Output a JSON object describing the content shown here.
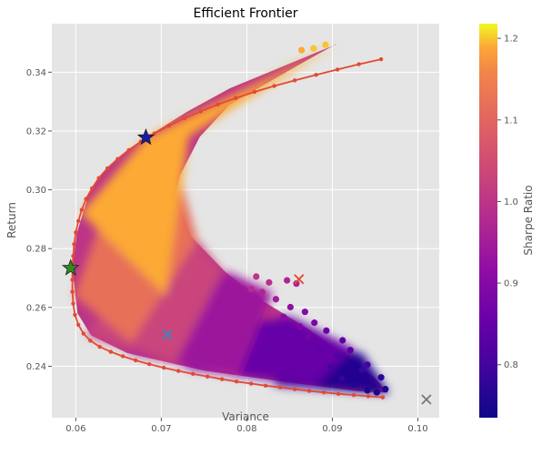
{
  "chart_data": {
    "type": "scatter",
    "title": "Efficient Frontier",
    "xlabel": "Variance",
    "ylabel": "Return",
    "xlim": [
      0.0572,
      0.1025
    ],
    "ylim": [
      0.2225,
      0.3565
    ],
    "x_ticks": [
      0.06,
      0.07,
      0.08,
      0.09,
      0.1
    ],
    "x_tick_labels": [
      "0.06",
      "0.07",
      "0.08",
      "0.09",
      "0.10"
    ],
    "y_ticks": [
      0.24,
      0.26,
      0.28,
      0.3,
      0.32,
      0.34
    ],
    "y_tick_labels": [
      "0.24",
      "0.26",
      "0.28",
      "0.30",
      "0.32",
      "0.34"
    ],
    "grid": true,
    "colormap": "plasma",
    "colorbar": {
      "label": "Sharpe Ratio",
      "range": [
        0.735,
        1.218
      ],
      "ticks": [
        0.8,
        0.9,
        1.0,
        1.1,
        1.2
      ],
      "tick_labels": [
        "0.8",
        "0.9",
        "1.0",
        "1.1",
        "1.2"
      ]
    },
    "portfolio_cloud": {
      "color_encoding": "sharpe_ratio",
      "upper_edge": [
        {
          "x": 0.0596,
          "y": 0.2734
        },
        {
          "x": 0.0601,
          "y": 0.285
        },
        {
          "x": 0.0616,
          "y": 0.2995
        },
        {
          "x": 0.064,
          "y": 0.3085
        },
        {
          "x": 0.0682,
          "y": 0.3178
        },
        {
          "x": 0.073,
          "y": 0.3265
        },
        {
          "x": 0.078,
          "y": 0.3345
        },
        {
          "x": 0.083,
          "y": 0.3405
        },
        {
          "x": 0.088,
          "y": 0.3465
        },
        {
          "x": 0.0905,
          "y": 0.3495
        }
      ],
      "lower_edge": [
        {
          "x": 0.0904,
          "y": 0.3495
        },
        {
          "x": 0.087,
          "y": 0.344
        },
        {
          "x": 0.0828,
          "y": 0.337
        },
        {
          "x": 0.078,
          "y": 0.329
        },
        {
          "x": 0.0745,
          "y": 0.318
        },
        {
          "x": 0.0722,
          "y": 0.305
        },
        {
          "x": 0.0716,
          "y": 0.298
        },
        {
          "x": 0.0735,
          "y": 0.284
        },
        {
          "x": 0.0775,
          "y": 0.272
        },
        {
          "x": 0.082,
          "y": 0.262
        },
        {
          "x": 0.087,
          "y": 0.253
        },
        {
          "x": 0.0915,
          "y": 0.244
        },
        {
          "x": 0.095,
          "y": 0.236
        },
        {
          "x": 0.0965,
          "y": 0.231
        },
        {
          "x": 0.093,
          "y": 0.2315
        },
        {
          "x": 0.085,
          "y": 0.2345
        },
        {
          "x": 0.075,
          "y": 0.2385
        },
        {
          "x": 0.066,
          "y": 0.2445
        },
        {
          "x": 0.0618,
          "y": 0.2505
        },
        {
          "x": 0.0602,
          "y": 0.258
        },
        {
          "x": 0.0596,
          "y": 0.2734
        }
      ],
      "sharpe_color_bands": [
        {
          "sharpe": 0.76,
          "region": [
            {
              "x": 0.083,
              "y": 0.2335
            },
            {
              "x": 0.0967,
              "y": 0.2305
            },
            {
              "x": 0.0935,
              "y": 0.2445
            },
            {
              "x": 0.088,
              "y": 0.2465
            }
          ]
        },
        {
          "sharpe": 0.85,
          "region": [
            {
              "x": 0.073,
              "y": 0.2392
            },
            {
              "x": 0.088,
              "y": 0.2335
            },
            {
              "x": 0.0925,
              "y": 0.246
            },
            {
              "x": 0.085,
              "y": 0.257
            },
            {
              "x": 0.076,
              "y": 0.252
            }
          ]
        },
        {
          "sharpe": 0.94,
          "region": [
            {
              "x": 0.0662,
              "y": 0.2445
            },
            {
              "x": 0.079,
              "y": 0.2365
            },
            {
              "x": 0.083,
              "y": 0.265
            },
            {
              "x": 0.0778,
              "y": 0.272
            },
            {
              "x": 0.07,
              "y": 0.261
            }
          ]
        },
        {
          "sharpe": 1.03,
          "region": [
            {
              "x": 0.0612,
              "y": 0.2505
            },
            {
              "x": 0.0716,
              "y": 0.241
            },
            {
              "x": 0.0772,
              "y": 0.272
            },
            {
              "x": 0.0742,
              "y": 0.283
            },
            {
              "x": 0.066,
              "y": 0.269
            }
          ]
        },
        {
          "sharpe": 1.12,
          "region": [
            {
              "x": 0.0598,
              "y": 0.264
            },
            {
              "x": 0.0665,
              "y": 0.248
            },
            {
              "x": 0.0742,
              "y": 0.283
            },
            {
              "x": 0.0722,
              "y": 0.304
            },
            {
              "x": 0.0635,
              "y": 0.294
            }
          ]
        },
        {
          "sharpe": 1.19,
          "region": [
            {
              "x": 0.0606,
              "y": 0.292
            },
            {
              "x": 0.0705,
              "y": 0.264
            },
            {
              "x": 0.0732,
              "y": 0.318
            },
            {
              "x": 0.079,
              "y": 0.329
            },
            {
              "x": 0.0905,
              "y": 0.3495
            },
            {
              "x": 0.0682,
              "y": 0.3178
            }
          ]
        }
      ],
      "scattered_points": [
        {
          "x": 0.0892,
          "y": 0.3493,
          "sharpe": 1.2
        },
        {
          "x": 0.0878,
          "y": 0.3481,
          "sharpe": 1.2
        },
        {
          "x": 0.0864,
          "y": 0.3475,
          "sharpe": 1.19
        },
        {
          "x": 0.0847,
          "y": 0.2692,
          "sharpe": 0.97
        },
        {
          "x": 0.0826,
          "y": 0.2685,
          "sharpe": 0.99
        },
        {
          "x": 0.0811,
          "y": 0.2705,
          "sharpe": 1.0
        },
        {
          "x": 0.0858,
          "y": 0.2681,
          "sharpe": 0.96
        },
        {
          "x": 0.0818,
          "y": 0.2652,
          "sharpe": 0.97
        },
        {
          "x": 0.0805,
          "y": 0.2662,
          "sharpe": 0.98
        },
        {
          "x": 0.0834,
          "y": 0.2628,
          "sharpe": 0.95
        },
        {
          "x": 0.0851,
          "y": 0.2601,
          "sharpe": 0.92
        },
        {
          "x": 0.0868,
          "y": 0.2585,
          "sharpe": 0.9
        },
        {
          "x": 0.0879,
          "y": 0.2548,
          "sharpe": 0.88
        },
        {
          "x": 0.0893,
          "y": 0.2521,
          "sharpe": 0.86
        },
        {
          "x": 0.0912,
          "y": 0.2488,
          "sharpe": 0.84
        },
        {
          "x": 0.0921,
          "y": 0.2455,
          "sharpe": 0.83
        },
        {
          "x": 0.0941,
          "y": 0.2405,
          "sharpe": 0.8
        },
        {
          "x": 0.0957,
          "y": 0.2362,
          "sharpe": 0.77
        },
        {
          "x": 0.0962,
          "y": 0.2322,
          "sharpe": 0.75
        },
        {
          "x": 0.0952,
          "y": 0.2311,
          "sharpe": 0.75
        },
        {
          "x": 0.0947,
          "y": 0.2335,
          "sharpe": 0.76
        },
        {
          "x": 0.0935,
          "y": 0.2388,
          "sharpe": 0.79
        },
        {
          "x": 0.0906,
          "y": 0.2435,
          "sharpe": 0.82
        },
        {
          "x": 0.0886,
          "y": 0.2462,
          "sharpe": 0.84
        },
        {
          "x": 0.0872,
          "y": 0.2498,
          "sharpe": 0.87
        },
        {
          "x": 0.0862,
          "y": 0.2535,
          "sharpe": 0.89
        },
        {
          "x": 0.0843,
          "y": 0.2568,
          "sharpe": 0.91
        },
        {
          "x": 0.0911,
          "y": 0.2358,
          "sharpe": 0.78
        },
        {
          "x": 0.0898,
          "y": 0.2398,
          "sharpe": 0.8
        },
        {
          "x": 0.0925,
          "y": 0.2338,
          "sharpe": 0.76
        },
        {
          "x": 0.0941,
          "y": 0.2318,
          "sharpe": 0.75
        }
      ]
    },
    "efficient_frontier": {
      "color": "#e24a33",
      "points": [
        {
          "x": 0.0959,
          "y": 0.2294
        },
        {
          "x": 0.0942,
          "y": 0.2298
        },
        {
          "x": 0.0925,
          "y": 0.2302
        },
        {
          "x": 0.0907,
          "y": 0.2306
        },
        {
          "x": 0.089,
          "y": 0.2311
        },
        {
          "x": 0.0873,
          "y": 0.2316
        },
        {
          "x": 0.0856,
          "y": 0.2322
        },
        {
          "x": 0.0839,
          "y": 0.2328
        },
        {
          "x": 0.0822,
          "y": 0.2334
        },
        {
          "x": 0.0805,
          "y": 0.2341
        },
        {
          "x": 0.0788,
          "y": 0.2348
        },
        {
          "x": 0.0771,
          "y": 0.2356
        },
        {
          "x": 0.0754,
          "y": 0.2365
        },
        {
          "x": 0.0737,
          "y": 0.2374
        },
        {
          "x": 0.072,
          "y": 0.2384
        },
        {
          "x": 0.0703,
          "y": 0.2395
        },
        {
          "x": 0.0686,
          "y": 0.2407
        },
        {
          "x": 0.067,
          "y": 0.242
        },
        {
          "x": 0.0655,
          "y": 0.2434
        },
        {
          "x": 0.0641,
          "y": 0.2449
        },
        {
          "x": 0.0628,
          "y": 0.2466
        },
        {
          "x": 0.0617,
          "y": 0.2487
        },
        {
          "x": 0.0609,
          "y": 0.2511
        },
        {
          "x": 0.0603,
          "y": 0.2541
        },
        {
          "x": 0.0599,
          "y": 0.2575
        },
        {
          "x": 0.0597,
          "y": 0.2613
        },
        {
          "x": 0.0596,
          "y": 0.2653
        },
        {
          "x": 0.0596,
          "y": 0.2694
        },
        {
          "x": 0.0596,
          "y": 0.2734
        },
        {
          "x": 0.0597,
          "y": 0.2775
        },
        {
          "x": 0.0598,
          "y": 0.2815
        },
        {
          "x": 0.06,
          "y": 0.2855
        },
        {
          "x": 0.0603,
          "y": 0.2894
        },
        {
          "x": 0.0607,
          "y": 0.2932
        },
        {
          "x": 0.0612,
          "y": 0.2969
        },
        {
          "x": 0.0619,
          "y": 0.3005
        },
        {
          "x": 0.0627,
          "y": 0.304
        },
        {
          "x": 0.0637,
          "y": 0.3073
        },
        {
          "x": 0.0649,
          "y": 0.3105
        },
        {
          "x": 0.0662,
          "y": 0.3135
        },
        {
          "x": 0.0676,
          "y": 0.3164
        },
        {
          "x": 0.0692,
          "y": 0.3192
        },
        {
          "x": 0.0709,
          "y": 0.3218
        },
        {
          "x": 0.0727,
          "y": 0.3243
        },
        {
          "x": 0.0746,
          "y": 0.3267
        },
        {
          "x": 0.0766,
          "y": 0.329
        },
        {
          "x": 0.0787,
          "y": 0.3312
        },
        {
          "x": 0.0809,
          "y": 0.3333
        },
        {
          "x": 0.0832,
          "y": 0.3353
        },
        {
          "x": 0.0856,
          "y": 0.3372
        },
        {
          "x": 0.0881,
          "y": 0.3391
        },
        {
          "x": 0.0906,
          "y": 0.3409
        },
        {
          "x": 0.0931,
          "y": 0.3427
        },
        {
          "x": 0.0957,
          "y": 0.3444
        }
      ]
    },
    "special_markers": [
      {
        "name": "max_sharpe",
        "marker": "star",
        "x": 0.0682,
        "y": 0.3178,
        "color": "#1a1aa8"
      },
      {
        "name": "min_variance",
        "marker": "star",
        "x": 0.0594,
        "y": 0.2734,
        "color": "#2e8b1e"
      },
      {
        "name": "x_marker_1",
        "marker": "x",
        "x": 0.0861,
        "y": 0.2696,
        "color": "#e24a33"
      },
      {
        "name": "x_marker_2",
        "marker": "x",
        "x": 0.0707,
        "y": 0.2508,
        "color": "#348abd"
      },
      {
        "name": "x_marker_3",
        "marker": "x",
        "x": 0.101,
        "y": 0.2287,
        "color": "#777777"
      }
    ]
  }
}
